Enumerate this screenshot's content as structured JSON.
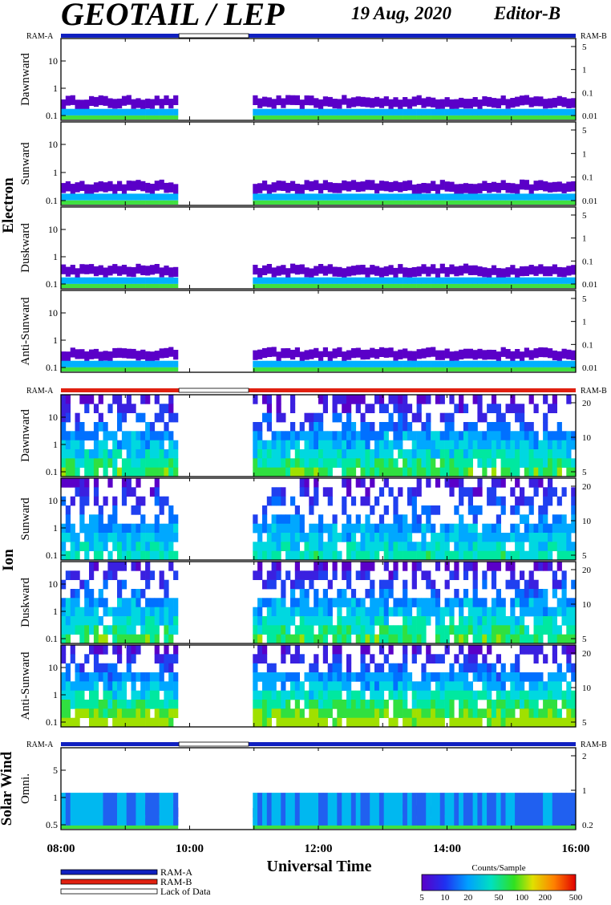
{
  "header": {
    "title": "GEOTAIL / LEP",
    "date": "19 Aug, 2020",
    "editor": "Editor-B"
  },
  "groups": {
    "electron": "Electron",
    "ion": "Ion",
    "solar_wind": "Solar Wind"
  },
  "ram_labels": {
    "left": "RAM-A",
    "right": "RAM-B"
  },
  "x_axis": {
    "title": "Universal Time",
    "ticks": [
      "08:00",
      "10:00",
      "12:00",
      "14:00",
      "16:00"
    ]
  },
  "legend": {
    "items": [
      "RAM-A",
      "RAM-B",
      "Lack of Data"
    ],
    "colors": {
      "ram_a": "#1020c0",
      "ram_b": "#e02010",
      "lack": "#ffffff"
    }
  },
  "colorbar": {
    "title": "Counts/Sample",
    "ticks": [
      "5",
      "10",
      "20",
      "50",
      "100",
      "200",
      "500"
    ]
  },
  "chart_data": {
    "type": "heatmap",
    "x_range": [
      "08:00",
      "16:00"
    ],
    "data_gap": {
      "start": "09:50",
      "end": "10:55"
    },
    "panels": [
      {
        "group": "Electron",
        "label": "Dawnward",
        "left_ticks": [
          "10",
          "1",
          "0.1"
        ],
        "right_ticks": [
          "5",
          "1",
          "0.1",
          "0.01"
        ],
        "ram_bar": "RAM-A",
        "level": 0.15
      },
      {
        "group": "Electron",
        "label": "Sunward",
        "left_ticks": [
          "10",
          "1",
          "0.1"
        ],
        "right_ticks": [
          "5",
          "1",
          "0.1",
          "0.01"
        ],
        "level": 0.15
      },
      {
        "group": "Electron",
        "label": "Duskward",
        "left_ticks": [
          "10",
          "1",
          "0.1"
        ],
        "right_ticks": [
          "5",
          "1",
          "0.1",
          "0.01"
        ],
        "level": 0.15
      },
      {
        "group": "Electron",
        "label": "Anti-Sunward",
        "left_ticks": [
          "10",
          "1",
          "0.1"
        ],
        "right_ticks": [
          "5",
          "1",
          "0.1",
          "0.01"
        ],
        "level": 0.15
      },
      {
        "group": "Ion",
        "label": "Dawnward",
        "left_ticks": [
          "10",
          "1",
          "0.1"
        ],
        "right_ticks": [
          "20",
          "10",
          "5"
        ],
        "ram_bar": "RAM-B",
        "level": 0.6
      },
      {
        "group": "Ion",
        "label": "Sunward",
        "left_ticks": [
          "10",
          "1",
          "0.1"
        ],
        "right_ticks": [
          "20",
          "10",
          "5"
        ],
        "level": 0.5
      },
      {
        "group": "Ion",
        "label": "Duskward",
        "left_ticks": [
          "10",
          "1",
          "0.1"
        ],
        "right_ticks": [
          "20",
          "10",
          "5"
        ],
        "level": 0.6
      },
      {
        "group": "Ion",
        "label": "Anti-Sunward",
        "left_ticks": [
          "10",
          "1",
          "0.1"
        ],
        "right_ticks": [
          "20",
          "10",
          "5"
        ],
        "level": 0.75
      },
      {
        "group": "Solar Wind",
        "label": "Omni.",
        "left_ticks": [
          "5",
          "1",
          "0.5"
        ],
        "right_ticks": [
          "2",
          "1",
          "0.2"
        ],
        "ram_bar": "RAM-A",
        "level": 0.35
      }
    ]
  }
}
